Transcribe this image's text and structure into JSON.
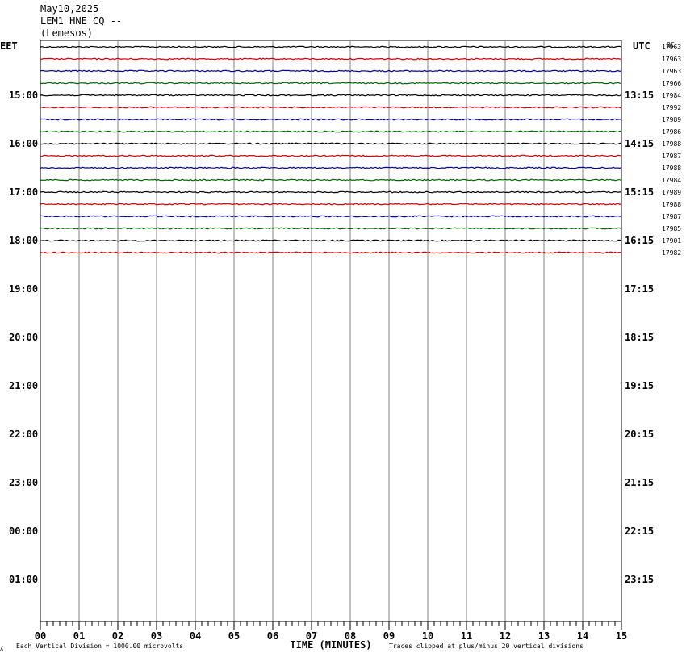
{
  "header": {
    "date": "May10,2025",
    "station": "LEM1 HNE CQ --",
    "location": "(Lemesos)"
  },
  "labels": {
    "left_tz": "EET",
    "right_tz": "UTC",
    "right_col": "QC",
    "xlabel": "TIME (MINUTES)",
    "footer_left": "Each Vertical Division = 1000.00 microvolts",
    "footer_right": "Traces clipped at plus/minus 20 vertical divisions",
    "corner_mark": "ʎ"
  },
  "colors": {
    "trace_cycle": [
      "#000000",
      "#d40000",
      "#0000aa",
      "#006600"
    ],
    "grid": "#808080"
  },
  "chart_data": {
    "type": "line",
    "title": "LEM1 HNE CQ -- (Lemesos) May10,2025",
    "xlabel": "TIME (MINUTES)",
    "xlim": [
      0,
      15
    ],
    "x_ticks": [
      "00",
      "01",
      "02",
      "03",
      "04",
      "05",
      "06",
      "07",
      "08",
      "09",
      "10",
      "11",
      "12",
      "13",
      "14",
      "15"
    ],
    "left_hour_labels": [
      "15:00",
      "16:00",
      "17:00",
      "18:00",
      "19:00",
      "20:00",
      "21:00",
      "22:00",
      "23:00",
      "00:00",
      "01:00"
    ],
    "right_hour_labels": [
      "13:15",
      "14:15",
      "15:15",
      "16:15",
      "17:15",
      "18:15",
      "19:15",
      "20:15",
      "21:15",
      "22:15",
      "23:15"
    ],
    "trace_minutes_per_line": 15,
    "traces_per_hour": 4,
    "trace_values": [
      "17963",
      "17963",
      "17963",
      "17966",
      "17984",
      "17992",
      "17989",
      "17986",
      "17988",
      "17987",
      "17988",
      "17984",
      "17989",
      "17988",
      "17987",
      "17985",
      "17901",
      "17982"
    ]
  }
}
